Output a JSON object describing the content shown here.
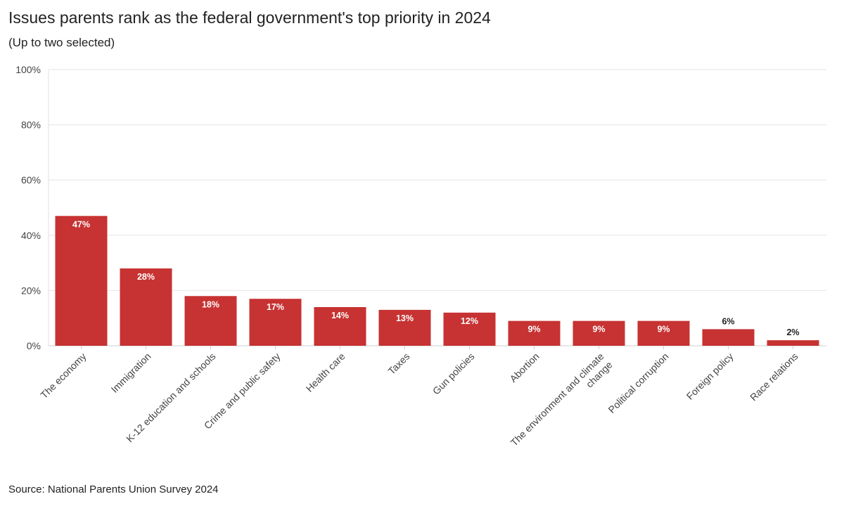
{
  "chart_data": {
    "type": "bar",
    "title": "Issues parents rank as the federal government's top priority in 2024",
    "subtitle": "(Up to two selected)",
    "source": "Source: National Parents Union Survey 2024",
    "categories": [
      "The economy",
      "Immigration",
      "K-12 education and schools",
      "Crime and public safety",
      "Health care",
      "Taxes",
      "Gun policies",
      "Abortion",
      "The environment and climate change",
      "Political corruption",
      "Foreign policy",
      "Race relations"
    ],
    "category_lines": [
      [
        "The economy"
      ],
      [
        "Immigration"
      ],
      [
        "K-12 education and schools"
      ],
      [
        "Crime and public safety"
      ],
      [
        "Health care"
      ],
      [
        "Taxes"
      ],
      [
        "Gun policies"
      ],
      [
        "Abortion"
      ],
      [
        "The environment and climate",
        "change"
      ],
      [
        "Political corruption"
      ],
      [
        "Foreign policy"
      ],
      [
        "Race relations"
      ]
    ],
    "values": [
      47,
      28,
      18,
      17,
      14,
      13,
      12,
      9,
      9,
      9,
      6,
      2
    ],
    "value_labels": [
      "47%",
      "28%",
      "18%",
      "17%",
      "14%",
      "13%",
      "12%",
      "9%",
      "9%",
      "9%",
      "6%",
      "2%"
    ],
    "ylim": [
      0,
      100
    ],
    "yticks": [
      0,
      20,
      40,
      60,
      80,
      100
    ],
    "ytick_labels": [
      "0%",
      "20%",
      "40%",
      "60%",
      "80%",
      "100%"
    ],
    "grid": true,
    "legend": "none",
    "bar_color": "#c73232",
    "inside_label_color": "#ffffff",
    "outside_label_color": "#222222"
  }
}
